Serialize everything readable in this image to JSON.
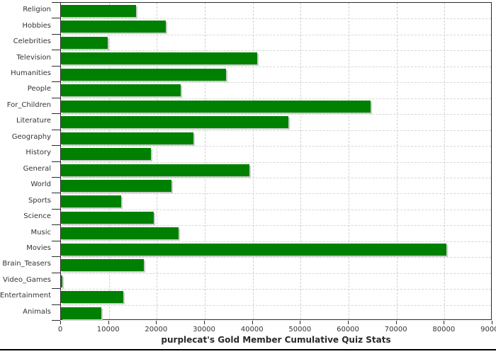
{
  "chart_data": {
    "type": "bar",
    "orientation": "horizontal",
    "title": "purplecat's Gold Member Cumulative Quiz Stats",
    "categories": [
      "Religion",
      "Hobbies",
      "Celebrities",
      "Television",
      "Humanities",
      "People",
      "For_Children",
      "Literature",
      "Geography",
      "History",
      "General",
      "World",
      "Sports",
      "Science",
      "Music",
      "Movies",
      "Brain_Teasers",
      "Video_Games",
      "Entertainment",
      "Animals"
    ],
    "values": [
      15600,
      21900,
      9800,
      41000,
      34500,
      25000,
      64600,
      47400,
      27700,
      18700,
      39300,
      23100,
      12600,
      19300,
      24500,
      80400,
      17300,
      300,
      13000,
      8400
    ],
    "xlabel": "",
    "ylabel": "",
    "xlim": [
      0,
      90000
    ],
    "x_tick_labels": [
      "0",
      "10000",
      "20000",
      "30000",
      "40000",
      "50000",
      "60000",
      "70000",
      "80000",
      "90000"
    ],
    "grid": "dashed-both-axes",
    "legend": null,
    "colors": {
      "bar": "#008000",
      "bar_shadow": "#c9cec9",
      "gridline": "#cfcfcf",
      "axis_frame": "#2b2b2b",
      "label_text": "#333333",
      "title_text": "#2b2b2b",
      "background": "#ffffff",
      "bottom_rule": "#000000"
    }
  }
}
